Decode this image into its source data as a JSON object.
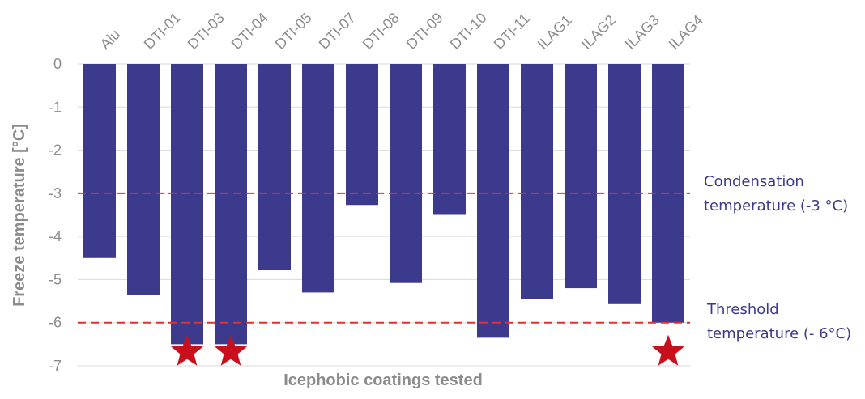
{
  "chart_data": {
    "type": "bar",
    "categories": [
      "Alu",
      "DTI-01",
      "DTI-03",
      "DTI-04",
      "DTI-05",
      "DTI-07",
      "DTI-08",
      "DTI-09",
      "DTI-10",
      "DTI-11",
      "ILAG1",
      "ILAG2",
      "ILAG3",
      "ILAG4"
    ],
    "values": [
      -4.5,
      -5.35,
      -6.5,
      -6.5,
      -4.77,
      -5.3,
      -3.27,
      -5.08,
      -3.5,
      -6.35,
      -5.45,
      -5.2,
      -5.57,
      -6.0
    ],
    "ylabel": "Freeze temperature [°C]",
    "xlabel": "Icephobic coatings tested",
    "ylim": [
      -7,
      0
    ],
    "yticks": [
      0,
      -1,
      -2,
      -3,
      -4,
      -5,
      -6,
      -7
    ],
    "grid": true,
    "bar_color": "#3b3a8c",
    "reference_lines": [
      {
        "value": -3,
        "color": "#e03030",
        "label_line1": "Condensation",
        "label_line2": "temperature (-3 °C)"
      },
      {
        "value": -6,
        "color": "#e03030",
        "label_line1": "Threshold",
        "label_line2": "temperature (- 6°C)"
      }
    ],
    "star_markers": {
      "categories": [
        "DTI-03",
        "DTI-04",
        "ILAG4"
      ],
      "value": -6.6,
      "color": "#c8101c",
      "icon": "star-icon"
    }
  }
}
